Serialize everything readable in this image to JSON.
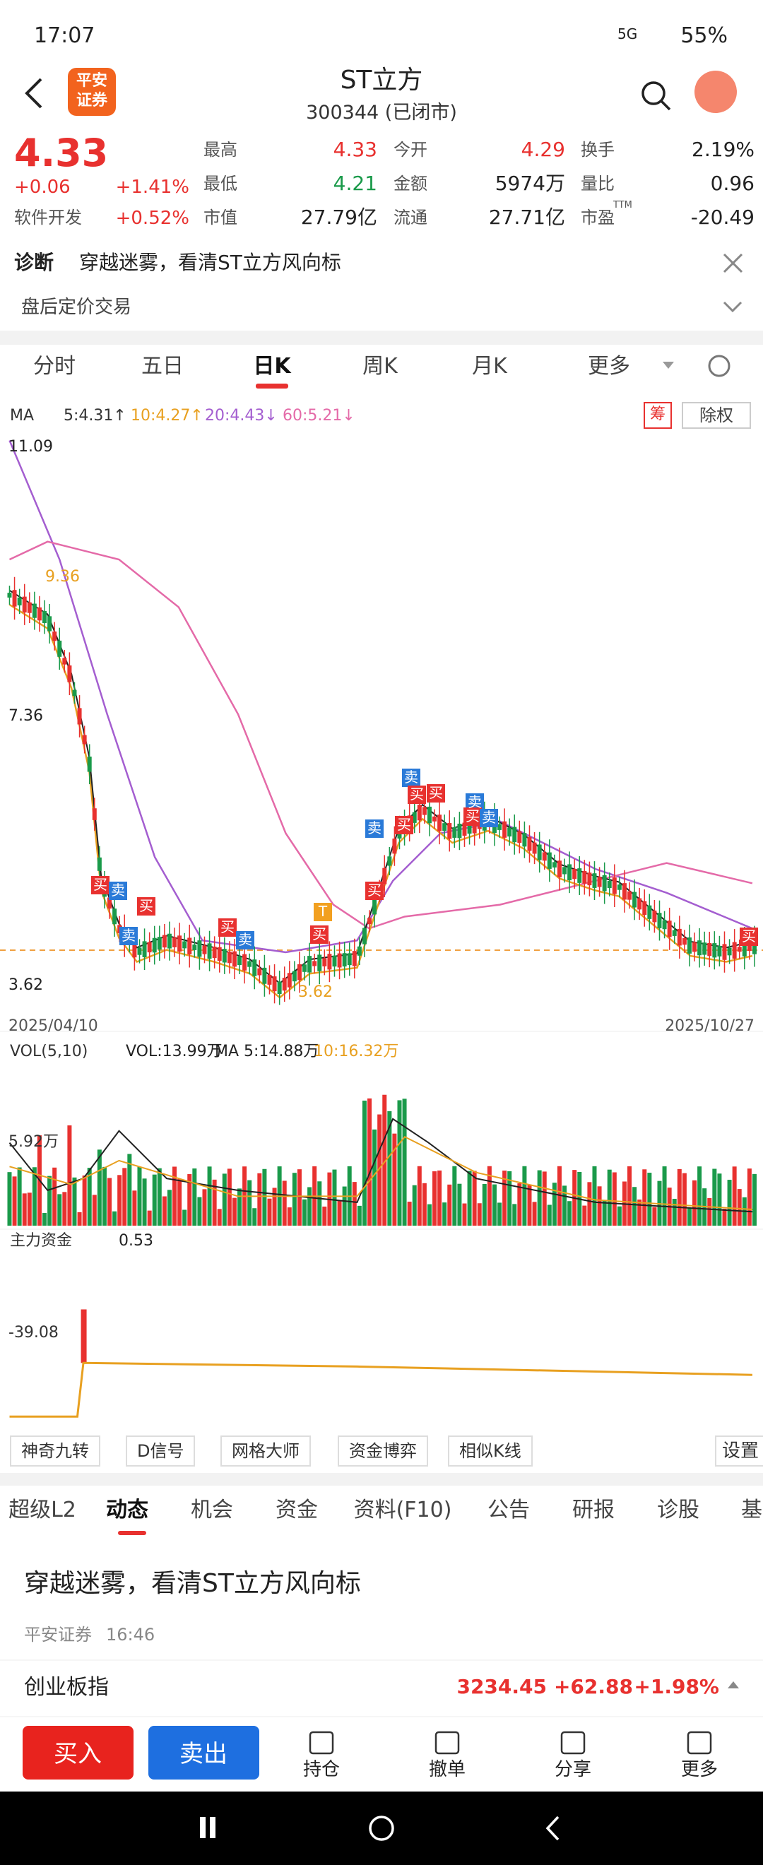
{
  "status_bar": {
    "time": "17:07",
    "network": "5G",
    "battery": "55%"
  },
  "header": {
    "logo_lines": [
      "平安",
      "证券"
    ],
    "title": "ST立方",
    "subtitle": "300344 (已闭市)"
  },
  "quote": {
    "price": "4.33",
    "change": "+0.06",
    "change_pct": "+1.41%",
    "sector": "软件开发",
    "sector_pct": "+0.52%",
    "stats": [
      [
        {
          "label": "最高",
          "value": "4.33"
        },
        {
          "label": "今开",
          "value": "4.29"
        },
        {
          "label": "换手",
          "value": "2.19%"
        }
      ],
      [
        {
          "label": "最低",
          "value": "4.21"
        },
        {
          "label": "金额",
          "value": "5974万"
        },
        {
          "label": "量比",
          "value": "0.96"
        }
      ],
      [
        {
          "label": "市值",
          "value": "27.79亿"
        },
        {
          "label": "流通",
          "value": "27.71亿"
        },
        {
          "label": "市盈",
          "value": "-20.49"
        }
      ]
    ],
    "pe_sup": "TTM"
  },
  "notice": {
    "tag": "诊断",
    "text": "穿越迷雾，看清ST立方风向标"
  },
  "after_hours": "盘后定价交易",
  "chart_tabs": [
    "分时",
    "五日",
    "日K",
    "周K",
    "月K",
    "更多"
  ],
  "indicators": {
    "ma": "MA",
    "items": [
      "5:4.31↑",
      "10:4.27↑",
      "20:4.43↓",
      "60:5.21↓"
    ],
    "chip": "筹",
    "adjust": "除权"
  },
  "kline": {
    "high_label": "11.09",
    "ma_high": "9.36",
    "mid_label": "7.36",
    "low_label": "3.62",
    "min_label": "3.62",
    "start_date": "2025/04/10",
    "end_date": "2025/10/27",
    "buy": "买",
    "sell": "卖",
    "t": "T"
  },
  "volume": {
    "name": "VOL(5,10)",
    "vol": "VOL:13.99万",
    "ma5": "MA 5:14.88万",
    "ma10": "10:16.32万",
    "axis_label": "5.92万"
  },
  "funds": {
    "name": "主力资金",
    "value": "0.53",
    "axis_label": "-39.08"
  },
  "tools": [
    "神奇九转",
    "D信号",
    "网格大师",
    "资金博弈",
    "相似K线"
  ],
  "settings": "设置",
  "info_tabs": [
    "超级L2",
    "动态",
    "机会",
    "资金",
    "资料(F10)",
    "公告",
    "研报",
    "诊股",
    "基"
  ],
  "news": {
    "title": "穿越迷雾，看清ST立方风向标",
    "source": "平安证券",
    "time": "16:46"
  },
  "index": {
    "name": "创业板指",
    "value": "3234.45",
    "change": "+62.88",
    "pct": "+1.98%"
  },
  "actions": {
    "buy": "买入",
    "sell": "卖出",
    "items": [
      "持仓",
      "撤单",
      "分享",
      "更多"
    ]
  }
}
